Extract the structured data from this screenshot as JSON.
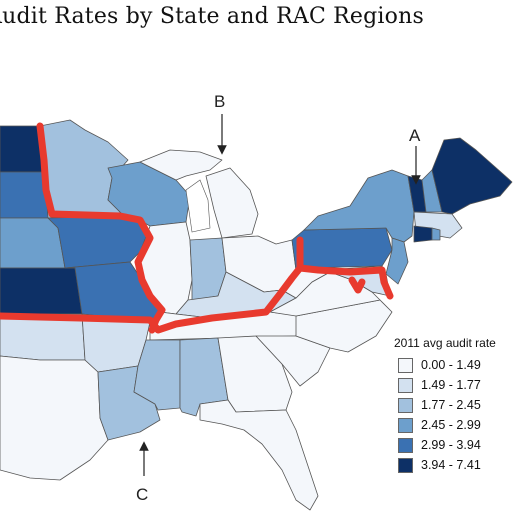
{
  "title": "Audit Rates by State and RAC Regions",
  "region_labels": [
    "A",
    "B",
    "C"
  ],
  "legend": {
    "title": "2011 avg audit rate",
    "items": [
      {
        "label": "0.00 - 1.49",
        "color": "#f4f7fb"
      },
      {
        "label": "1.49 - 1.77",
        "color": "#d3e1f0"
      },
      {
        "label": "1.77 - 2.45",
        "color": "#a2c1de"
      },
      {
        "label": "2.45 - 2.99",
        "color": "#6d9fcc"
      },
      {
        "label": "2.99 - 3.94",
        "color": "#3a71b2"
      },
      {
        "label": "3.94 - 7.41",
        "color": "#0d3066"
      }
    ]
  },
  "boundary_color": "#e83a2e"
}
